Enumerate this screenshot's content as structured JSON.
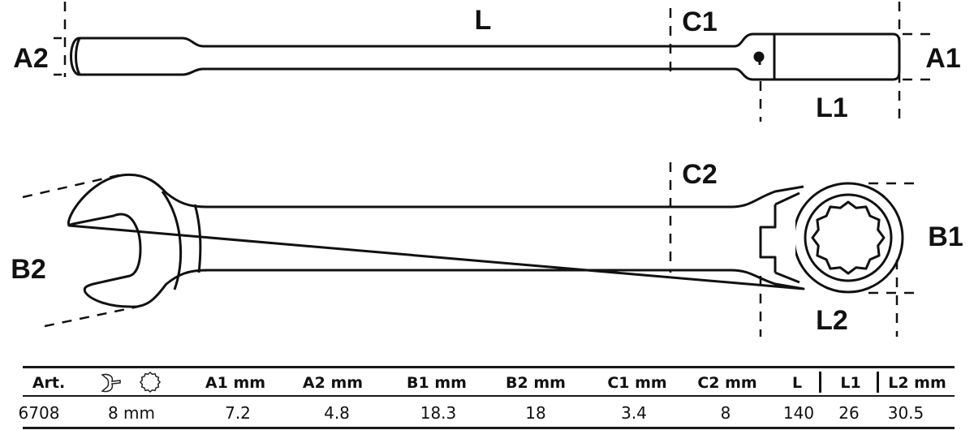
{
  "labels": {
    "L": "L",
    "C1": "C1",
    "C2": "C2",
    "A1": "A1",
    "A2": "A2",
    "B1": "B1",
    "B2": "B2",
    "L1": "L1",
    "L2": "L2"
  },
  "table": {
    "headers": {
      "art": "Art.",
      "size_icons": [
        "open-end-wrench-icon",
        "12-point-ring-icon"
      ],
      "a1": "A1   mm",
      "a2": "A2  mm",
      "b1": "B1  mm",
      "b2": "B2  mm",
      "c1": "C1 mm",
      "c2": "C2 mm",
      "l": "L",
      "l1": "L1",
      "l2": "L2  mm"
    },
    "rows": [
      {
        "art": "6708",
        "size": "8 mm",
        "a1": "7.2",
        "a2": "4.8",
        "b1": "18.3",
        "b2": "18",
        "c1": "3.4",
        "c2": "8",
        "l": "140",
        "l1": "26",
        "l2": "30.5"
      }
    ]
  }
}
